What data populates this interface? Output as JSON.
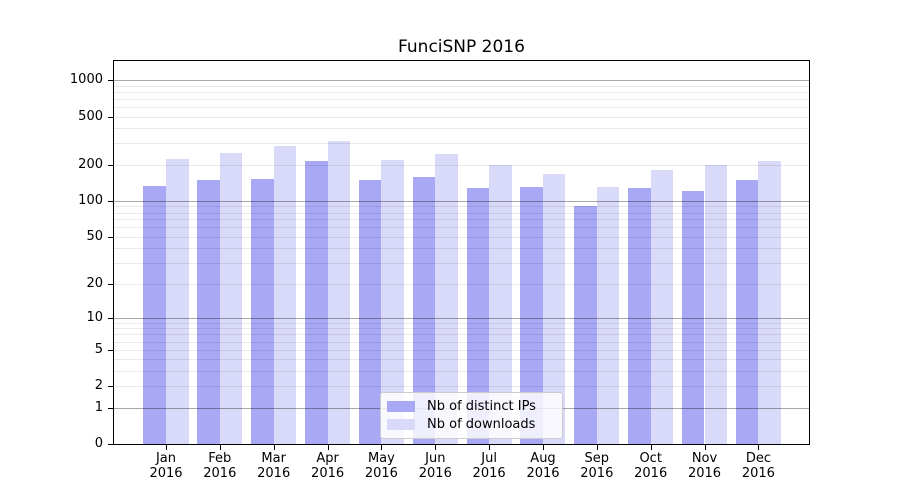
{
  "chart_data": {
    "type": "bar",
    "title": "FunciSNP 2016",
    "categories": [
      "Jan",
      "Feb",
      "Mar",
      "Apr",
      "May",
      "Jun",
      "Jul",
      "Aug",
      "Sep",
      "Oct",
      "Nov",
      "Dec"
    ],
    "x_tick_year": "2016",
    "series": [
      {
        "name": "Nb of distinct IPs",
        "color": "#a8a8f5",
        "values": [
          132,
          148,
          151,
          213,
          150,
          157,
          127,
          130,
          90,
          128,
          122,
          148
        ]
      },
      {
        "name": "Nb of downloads",
        "color": "#d9d9f9",
        "values": [
          223,
          248,
          288,
          315,
          220,
          246,
          200,
          168,
          130,
          182,
          200,
          216
        ]
      }
    ],
    "xlabel": "",
    "ylabel": "",
    "y_scale": "log1p",
    "y_ticks": [
      0,
      1,
      2,
      5,
      10,
      20,
      50,
      100,
      200,
      500,
      1000
    ],
    "ylim": [
      0,
      1435
    ],
    "grid": "on",
    "legend_position": "lower center"
  }
}
